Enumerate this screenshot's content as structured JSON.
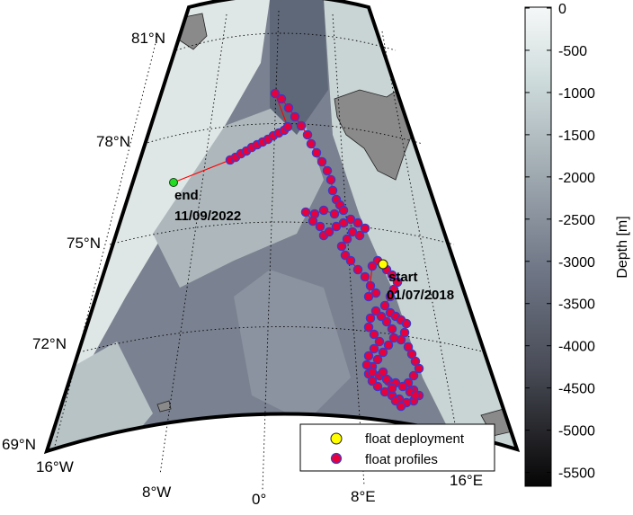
{
  "map": {
    "lat_labels": [
      "81°N",
      "78°N",
      "75°N",
      "72°N",
      "69°N"
    ],
    "lon_labels": [
      "16°W",
      "8°W",
      "0°",
      "8°E",
      "16°E"
    ],
    "start_label": "start",
    "start_date": "01/07/2018",
    "end_label": "end",
    "end_date": "11/09/2022",
    "track_color": "#ff0000",
    "profile_fill": "#e8003a",
    "profile_edge": "#3a3acc",
    "deployment_color": "#ffff00",
    "end_marker_color": "#22dd22",
    "land_color": "#8a8a8a"
  },
  "colorbar": {
    "title": "Depth [m]",
    "ticks": [
      "0",
      "-500",
      "-1000",
      "-1500",
      "-2000",
      "-2500",
      "-3000",
      "-3500",
      "-4000",
      "-4500",
      "-5000",
      "-5500"
    ],
    "colormap_top": "#f4f7f7",
    "colormap_mid": "#6f7888",
    "colormap_bottom": "#0a0a0c"
  },
  "legend": {
    "items": [
      {
        "label": "float deployment",
        "color": "#ffff00"
      },
      {
        "label": "float profiles",
        "color": "#e8003a"
      }
    ]
  }
}
